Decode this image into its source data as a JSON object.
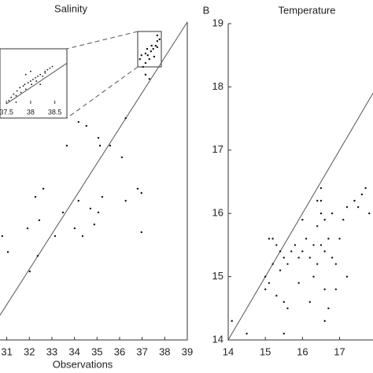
{
  "chart_data": [
    {
      "type": "scatter",
      "title": "Salinity",
      "xlabel": "Observations",
      "xlim": [
        30.7,
        39
      ],
      "ylim": [
        30,
        39
      ],
      "xticks": [
        31,
        32,
        33,
        34,
        35,
        36,
        37,
        38,
        39
      ],
      "color": "#111",
      "x": [
        36.27,
        35.06,
        35.13,
        33.66,
        34.18,
        34.53,
        32.62,
        32.27,
        32.44,
        31.92,
        34.18,
        35.23,
        36.27,
        36.8,
        36.97,
        36.97,
        34.36,
        34.01,
        33.49,
        33.14,
        30.8,
        31.05,
        32.37,
        32.02,
        34.88,
        35.06,
        34.71,
        35.58,
        36.1,
        37.15,
        37.25,
        37.39,
        37.49,
        37.6,
        37.67,
        37.15,
        37.32,
        37.04,
        37.53,
        37.67,
        36.9,
        36.97,
        37.67,
        37.77,
        37.42,
        37.22,
        37.15,
        37.32
      ],
      "y": [
        36.28,
        35.72,
        35.5,
        35.5,
        36.17,
        36.06,
        34.28,
        34.05,
        33.39,
        33.16,
        33.94,
        34.05,
        33.94,
        34.28,
        34.16,
        33.05,
        32.94,
        33.16,
        33.61,
        32.94,
        32.94,
        32.49,
        32.38,
        31.94,
        33.27,
        33.61,
        33.72,
        35.5,
        35.17,
        37.84,
        38.06,
        38.17,
        38.24,
        38.33,
        38.29,
        38.11,
        37.95,
        37.73,
        38.02,
        38.46,
        37.95,
        38.06,
        38.62,
        38.51,
        38.33,
        38.24,
        37.51,
        37.39
      ],
      "inset": {
        "xlim": [
          37.4,
          38.75
        ],
        "ylim": [
          37.5,
          39
        ],
        "xticks": [
          37.5,
          38,
          38.5
        ],
        "x": [
          37.55,
          37.6,
          37.65,
          37.7,
          37.72,
          37.78,
          37.8,
          37.85,
          37.88,
          37.9,
          37.95,
          38.0,
          38.02,
          38.05,
          38.1,
          38.12,
          38.15,
          38.2,
          38.25,
          38.3,
          38.35,
          38.4,
          38.45,
          37.9,
          38.0,
          38.2,
          37.7,
          38.3
        ],
        "y": [
          37.6,
          37.7,
          37.8,
          37.75,
          37.9,
          38.0,
          37.85,
          38.05,
          38.1,
          37.95,
          38.15,
          38.2,
          38.1,
          38.25,
          38.3,
          38.2,
          38.35,
          38.4,
          38.35,
          38.5,
          38.55,
          38.6,
          38.65,
          38.4,
          38.5,
          38.1,
          37.55,
          38.45
        ]
      }
    },
    {
      "type": "scatter",
      "title": "Temperature",
      "panel_label": "B",
      "xlim": [
        14,
        17.9
      ],
      "ylim": [
        14,
        19
      ],
      "xticks": [
        14,
        15,
        16,
        17
      ],
      "yticks": [
        14,
        15,
        16,
        17,
        18,
        19
      ],
      "color": "#111",
      "x": [
        15.0,
        15.1,
        15.2,
        15.3,
        15.4,
        15.5,
        15.6,
        15.7,
        15.8,
        16.0,
        16.1,
        16.2,
        16.3,
        16.4,
        16.5,
        16.5,
        16.6,
        16.4,
        16.3,
        16.5,
        16.6,
        16.7,
        16.8,
        16.9,
        17.0,
        17.1,
        17.2,
        17.4,
        17.5,
        17.6,
        17.7,
        17.8,
        15.2,
        15.1,
        15.0,
        15.3,
        15.5,
        15.6,
        15.9,
        16.2,
        16.6,
        16.6,
        16.7,
        16.9,
        17.2,
        15.4,
        15.9,
        16.0,
        16.4,
        16.5,
        16.8,
        14.1,
        14.5,
        15.5
      ],
      "y": [
        15.0,
        14.9,
        15.2,
        15.5,
        15.4,
        15.3,
        15.2,
        15.4,
        15.5,
        15.4,
        15.6,
        15.3,
        15.5,
        15.8,
        16.0,
        16.2,
        15.9,
        15.2,
        15.0,
        15.5,
        15.4,
        15.6,
        15.3,
        15.2,
        15.6,
        15.9,
        16.1,
        16.2,
        16.1,
        16.3,
        16.4,
        16.0,
        15.6,
        15.6,
        14.8,
        14.7,
        14.6,
        14.5,
        14.9,
        14.6,
        14.8,
        14.3,
        14.5,
        14.8,
        15.0,
        15.1,
        15.3,
        15.9,
        16.2,
        16.4,
        16.0,
        14.3,
        14.1,
        14.1
      ]
    }
  ]
}
